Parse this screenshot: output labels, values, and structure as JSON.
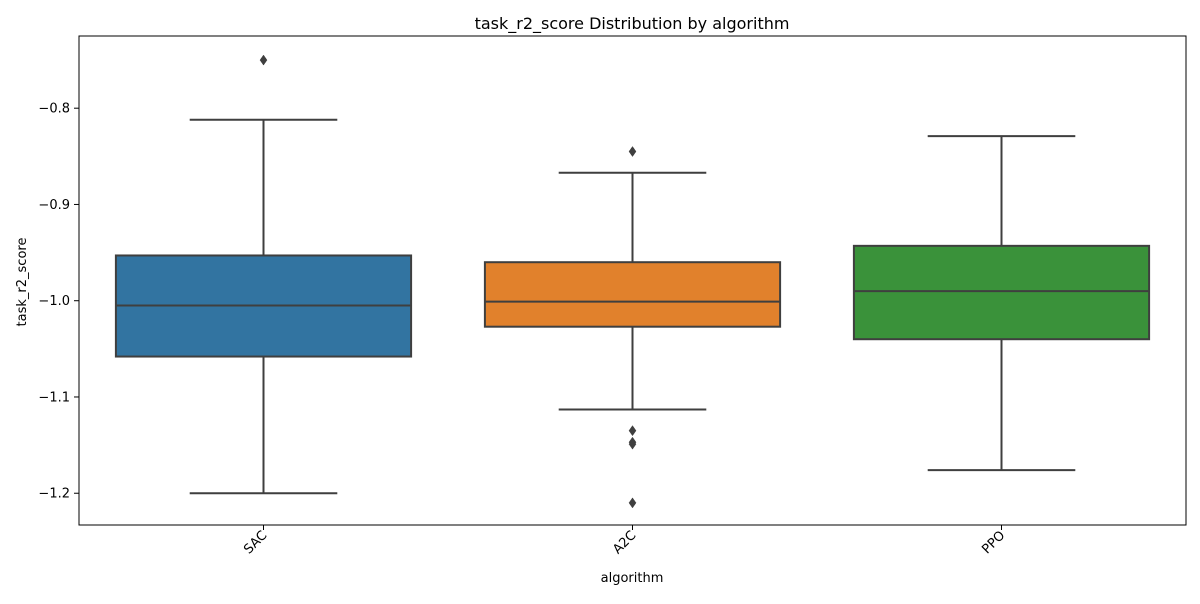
{
  "chart_data": {
    "type": "box",
    "title": "task_r2_score Distribution by algorithm",
    "xlabel": "algorithm",
    "ylabel": "task_r2_score",
    "ylim": [
      -1.233,
      -0.725
    ],
    "yticks": [
      -0.8,
      -0.9,
      -1.0,
      -1.1,
      -1.2
    ],
    "ytick_labels": [
      "−0.8",
      "−0.9",
      "−1.0",
      "−1.1",
      "−1.2"
    ],
    "grid": false,
    "categories": [
      "SAC",
      "A2C",
      "PPO"
    ],
    "colors": [
      "#3274a1",
      "#e1812c",
      "#3a923a"
    ],
    "edge_color": "#3f3f3f",
    "boxes": [
      {
        "name": "SAC",
        "whisker_low": -1.2,
        "q1": -1.058,
        "median": -1.005,
        "q3": -0.953,
        "whisker_high": -0.812,
        "outliers": [
          -0.75
        ]
      },
      {
        "name": "A2C",
        "whisker_low": -1.113,
        "q1": -1.027,
        "median": -1.001,
        "q3": -0.96,
        "whisker_high": -0.867,
        "outliers": [
          -0.845,
          -1.135,
          -1.147,
          -1.149,
          -1.21
        ]
      },
      {
        "name": "PPO",
        "whisker_low": -1.176,
        "q1": -1.04,
        "median": -0.99,
        "q3": -0.943,
        "whisker_high": -0.829,
        "outliers": []
      }
    ]
  }
}
